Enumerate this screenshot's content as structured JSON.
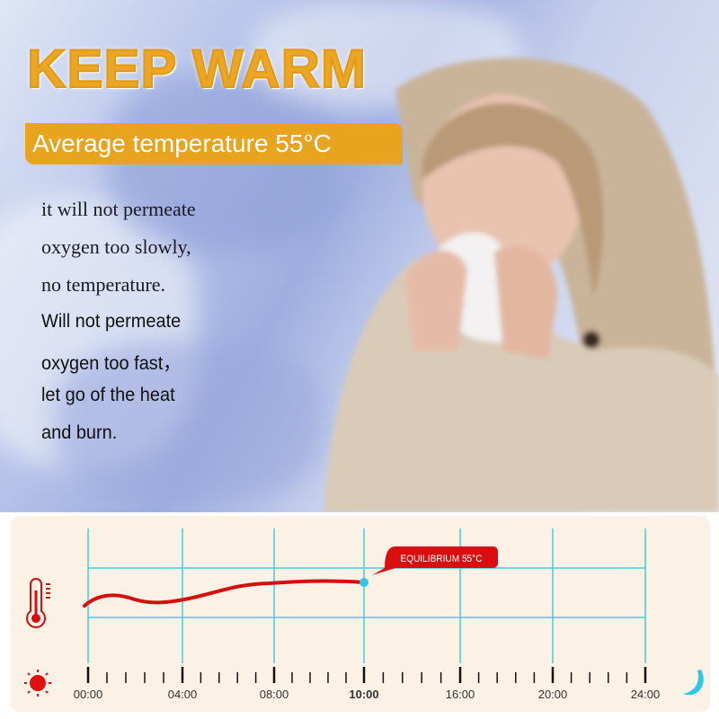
{
  "headline": "KEEP WARM",
  "subtitle": "Average temperature 55°C",
  "body_lines": [
    "it will not permeate",
    "oxygen too slowly,",
    "no temperature.",
    "Will not permeate",
    "oxygen too fast，",
    "let go of the heat",
    "and burn."
  ],
  "chart_data": {
    "type": "line",
    "x_tick_labels": [
      "00:00",
      "04:00",
      "08:00",
      "10:00",
      "16:00",
      "20:00",
      "24:00"
    ],
    "annotation": "EQUILIBRIUM 55°C",
    "colors": {
      "curve": "#d40f0f",
      "grid": "#3fd0e0",
      "marker": "#2fc7e6"
    },
    "grid": true
  },
  "icons": {
    "left_top": "thermometer-icon",
    "left_bottom": "sun-icon",
    "right_bottom": "moon-icon"
  }
}
